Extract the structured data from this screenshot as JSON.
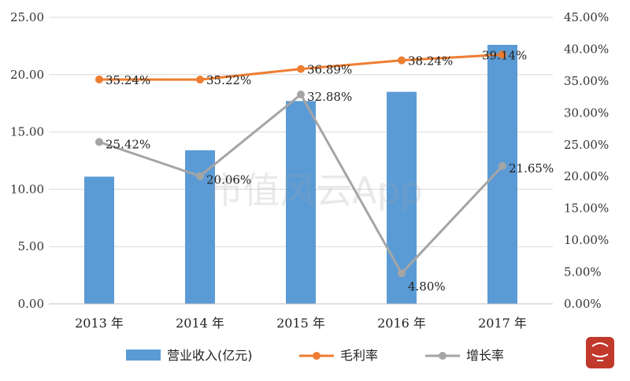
{
  "chart_data": {
    "type": "bar",
    "categories": [
      "2013 年",
      "2014 年",
      "2015 年",
      "2016 年",
      "2017 年"
    ],
    "series": [
      {
        "name": "营业收入(亿元)",
        "type": "bar",
        "axis": "left",
        "values": [
          11.1,
          13.4,
          17.7,
          18.5,
          22.6
        ],
        "color": "#5b9bd5"
      },
      {
        "name": "毛利率",
        "type": "line",
        "axis": "right",
        "values": [
          35.24,
          35.22,
          36.89,
          38.24,
          39.14
        ],
        "labels": [
          "35.24%",
          "35.22%",
          "36.89%",
          "38.24%",
          "39.14%"
        ],
        "color": "#ed7d31"
      },
      {
        "name": "增长率",
        "type": "line",
        "axis": "right",
        "values": [
          25.42,
          20.06,
          32.88,
          4.8,
          21.65
        ],
        "labels": [
          "25.42%",
          "20.06%",
          "32.88%",
          "4.80%",
          "21.65%"
        ],
        "color": "#a5a5a5"
      }
    ],
    "y_left": {
      "range": [
        0,
        25
      ],
      "ticks": [
        0,
        5,
        10,
        15,
        20,
        25
      ],
      "tick_labels": [
        "0.00",
        "5.00",
        "10.00",
        "15.00",
        "20.00",
        "25.00"
      ]
    },
    "y_right": {
      "range": [
        0,
        45
      ],
      "ticks": [
        0,
        5,
        10,
        15,
        20,
        25,
        30,
        35,
        40,
        45
      ],
      "tick_labels": [
        "0.00%",
        "5.00%",
        "10.00%",
        "15.00%",
        "20.00%",
        "25.00%",
        "30.00%",
        "35.00%",
        "40.00%",
        "45.00%"
      ]
    },
    "grid": true,
    "legend_position": "bottom",
    "watermark": "市值风云App"
  }
}
